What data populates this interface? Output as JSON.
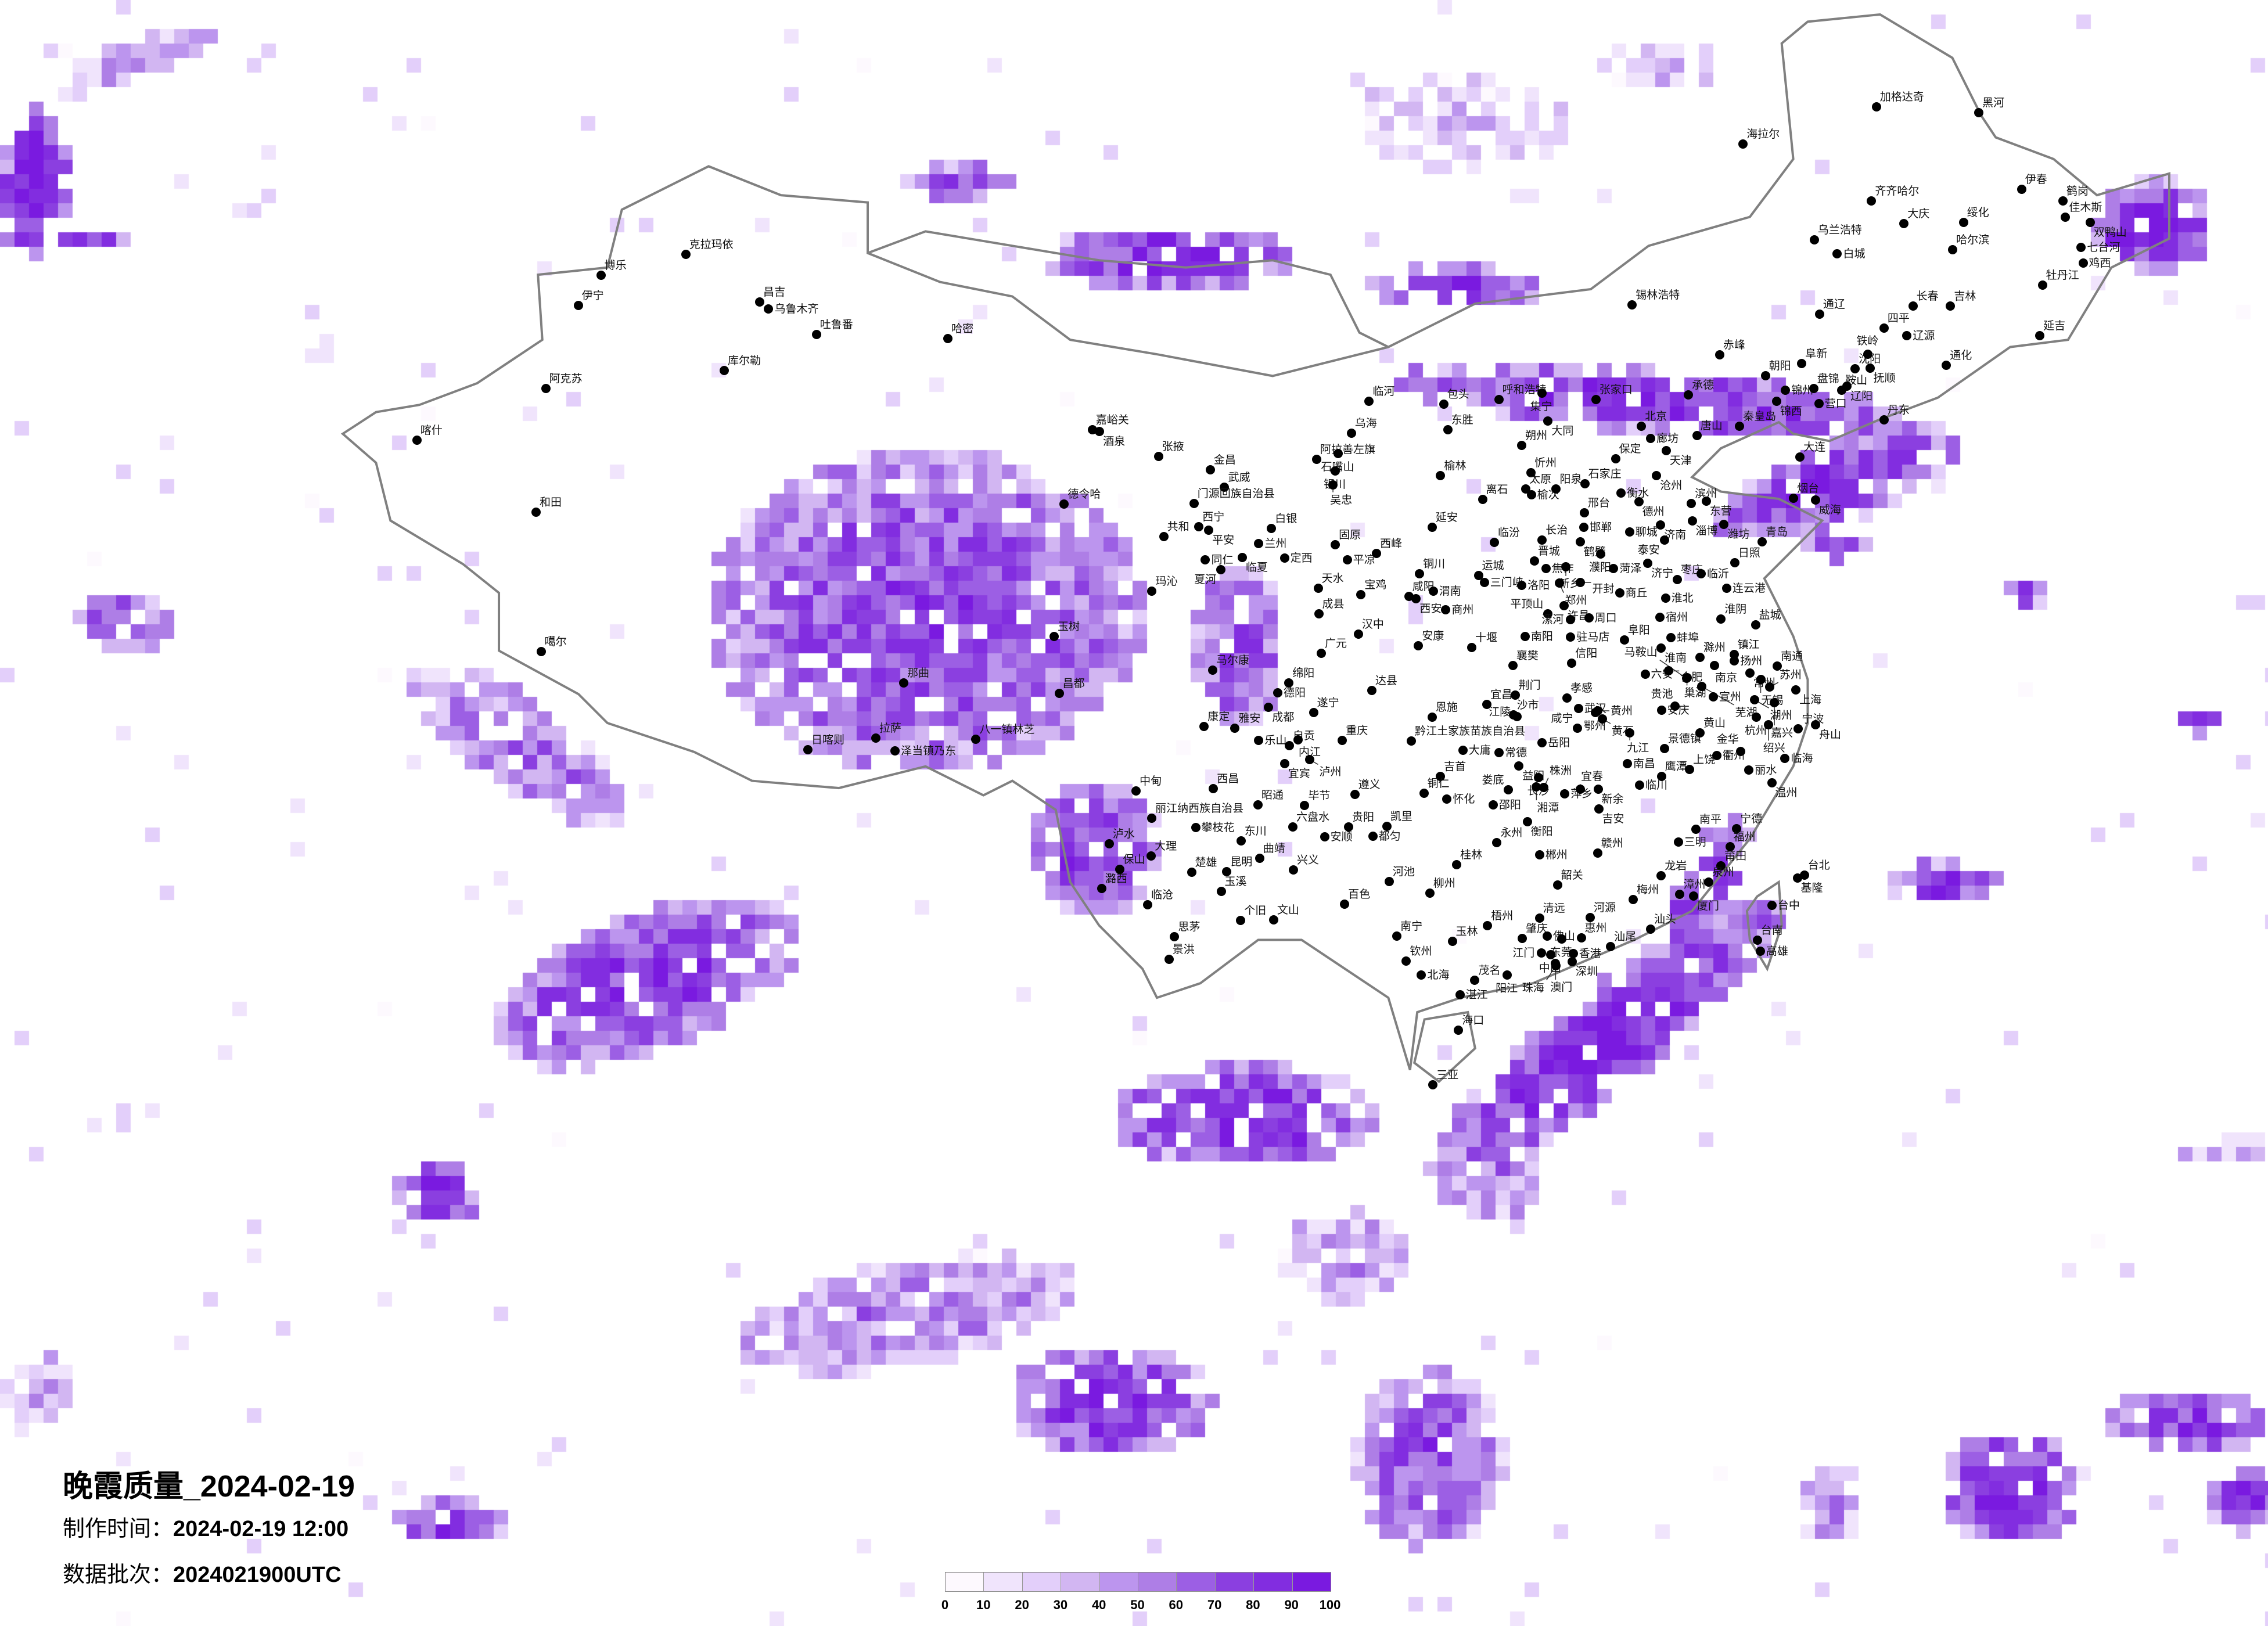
{
  "title": "晚霞质量_2024-02-19",
  "production_time_label": "制作时间：",
  "production_time": "2024-02-19 12:00",
  "batch_label": "数据批次：",
  "batch": "2024021900UTC",
  "legend": {
    "ticks": [
      "0",
      "10",
      "20",
      "30",
      "40",
      "50",
      "60",
      "70",
      "80",
      "90",
      "100"
    ],
    "colors": [
      "#fdf9fe",
      "#f0e4fc",
      "#e3cffa",
      "#d2b6f2",
      "#bc95ee",
      "#ae7ee6",
      "#9c5fe4",
      "#8b3fe0",
      "#822de0",
      "#7a1ae0"
    ]
  },
  "map": {
    "border_color": "#808080",
    "city_marker_color": "#000000",
    "cities": [
      "克拉玛依",
      "博乐",
      "伊宁",
      "昌吉",
      "乌鲁木齐",
      "吐鲁番",
      "哈密",
      "库尔勒",
      "阿克苏",
      "和田",
      "德令哈",
      "喀什",
      "噶尔",
      "那曲",
      "日喀则",
      "拉萨",
      "泽当镇乃东",
      "八一镇林芝",
      "嘉峪关",
      "酒泉",
      "张掖",
      "金昌",
      "武威",
      "门源回族自治县",
      "阿拉善左旗",
      "石嘴山",
      "银川",
      "吴忠",
      "西宁",
      "平安",
      "共和",
      "白银",
      "兰州",
      "临夏",
      "定西",
      "固原",
      "同仁",
      "夏河",
      "玛沁",
      "天水",
      "成县",
      "玉树",
      "广元",
      "马尔康",
      "绵阳",
      "德阳",
      "昌都",
      "成都",
      "遂宁",
      "康定",
      "雅安",
      "乐山",
      "自贡",
      "内江",
      "重庆",
      "宜宾",
      "泸州",
      "黔江土家族苗族自治县",
      "中甸",
      "西昌",
      "吉首",
      "铜仁",
      "怀化",
      "遵义",
      "昭通",
      "毕节",
      "丽江纳西族自治县",
      "攀枝花",
      "六盘水",
      "贵阳",
      "安顺",
      "凯里",
      "都匀",
      "泸水",
      "东川",
      "大理",
      "曲靖",
      "保山",
      "楚雄",
      "昆明",
      "兴义",
      "桂林",
      "河池",
      "潞西",
      "玉溪",
      "柳州",
      "临沧",
      "百色",
      "个旧",
      "文山",
      "思茅",
      "南宁",
      "玉林",
      "景洪",
      "钦州",
      "北海",
      "锡林浩特",
      "通辽",
      "四平",
      "赤峰",
      "阜新",
      "朝阳",
      "临河",
      "包头",
      "呼和浩特",
      "集宁",
      "张家口",
      "承德",
      "锦州",
      "盘锦",
      "营口",
      "鞍山",
      "辽阳",
      "沈阳",
      "抚顺",
      "铁岭",
      "丹东",
      "大同",
      "北京",
      "廊坊",
      "唐山",
      "秦皇岛",
      "锦西",
      "天津",
      "大连",
      "东胜",
      "乌海",
      "朔州",
      "保定",
      "榆林",
      "忻州",
      "石家庄",
      "沧州",
      "太原",
      "榆次",
      "阳泉",
      "衡水",
      "离石",
      "德州",
      "滨州",
      "东营",
      "烟台",
      "威海",
      "邢台",
      "延安",
      "邯郸",
      "聊城",
      "济南",
      "淄博",
      "潍坊",
      "临汾",
      "长治",
      "泰安",
      "青岛",
      "平凉",
      "西峰",
      "鹤壁",
      "晋城",
      "焦作",
      "新乡",
      "濮阳",
      "菏泽",
      "济宁",
      "日照",
      "铜川",
      "运城",
      "三门峡",
      "洛阳",
      "郑州",
      "开封",
      "枣庄",
      "临沂",
      "连云港",
      "宝鸡",
      "咸阳",
      "西安",
      "渭南",
      "商丘",
      "淮北",
      "宿州",
      "商州",
      "许昌",
      "平顶山",
      "漯河",
      "周口",
      "淮阴",
      "盐城",
      "汉中",
      "南阳",
      "驻马店",
      "阜阳",
      "蚌埠",
      "淮南",
      "安康",
      "十堰",
      "滁州",
      "镇江",
      "扬州",
      "南通",
      "襄樊",
      "信阳",
      "六安",
      "合肥",
      "南京",
      "巢湖",
      "常州",
      "无锡",
      "苏州",
      "上海",
      "达县",
      "加格达奇",
      "黑河",
      "海拉尔",
      "伊春",
      "齐齐哈尔",
      "鹤岗",
      "大庆",
      "绥化",
      "佳木斯",
      "双鸭山",
      "乌兰浩特",
      "白城",
      "哈尔滨",
      "七台河",
      "鸡西",
      "牡丹江",
      "长春",
      "吉林",
      "延吉",
      "辽源",
      "通化",
      "荆门",
      "孝感",
      "宜昌",
      "武汉",
      "沙市",
      "江陵",
      "鄂州",
      "黄州",
      "黄石",
      "恩施",
      "咸宁",
      "九江",
      "岳阳",
      "大庸",
      "常德",
      "益阳",
      "长沙",
      "湘潭",
      "株洲",
      "娄底",
      "萍乡",
      "宜春",
      "新余",
      "邵阳",
      "吉安",
      "南昌",
      "临川",
      "鹰潭",
      "上饶",
      "景德镇",
      "安庆",
      "贵池",
      "黄山",
      "宣州",
      "马鞍山",
      "芜湖",
      "湖州",
      "嘉兴",
      "杭州",
      "绍兴",
      "宁波",
      "舟山",
      "衢州",
      "金华",
      "临海",
      "丽水",
      "温州",
      "衡阳",
      "永州",
      "郴州",
      "赣州",
      "南平",
      "宁德",
      "三明",
      "福州",
      "莆田",
      "龙岩",
      "泉州",
      "台北",
      "基隆",
      "韶关",
      "漳州",
      "厦门",
      "梅州",
      "台中",
      "清远",
      "河源",
      "梧州",
      "汕头",
      "肇庆",
      "佛山",
      "东莞",
      "惠州",
      "江门",
      "中山",
      "香港",
      "深圳",
      "澳门",
      "珠海",
      "汕尾",
      "台南",
      "高雄",
      "茂名",
      "阳江",
      "湛江",
      "海口",
      "三亚"
    ]
  }
}
